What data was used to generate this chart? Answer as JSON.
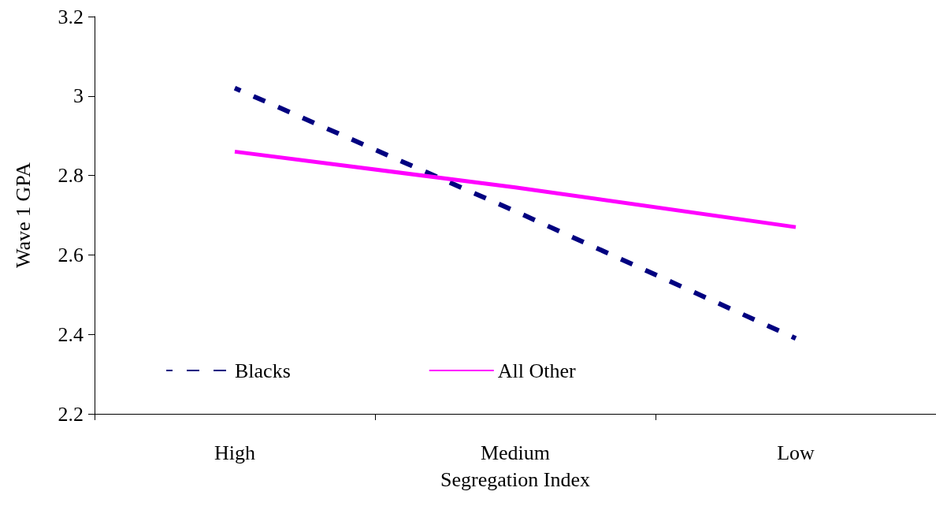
{
  "chart_data": {
    "type": "line",
    "xlabel": "Segregation Index",
    "ylabel": "Wave 1 GPA",
    "categories": [
      "High",
      "Medium",
      "Low"
    ],
    "series": [
      {
        "name": "Blacks",
        "color": "#000080",
        "line_style": "dashed",
        "values": [
          3.02,
          2.71,
          2.39
        ]
      },
      {
        "name": "All Other",
        "color": "#ff00ff",
        "line_style": "solid",
        "values": [
          2.86,
          2.77,
          2.67
        ]
      }
    ],
    "ylim": [
      2.2,
      3.2
    ],
    "yticks": [
      2.2,
      2.4,
      2.6,
      2.8,
      3,
      3.2
    ],
    "grid": false,
    "legend": "bottom left",
    "marker": "none"
  }
}
